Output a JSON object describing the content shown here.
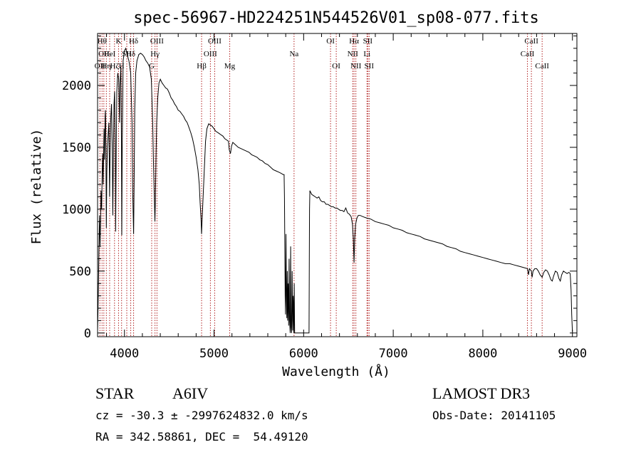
{
  "chart_data": {
    "type": "line",
    "title": "spec-56967-HD224251N544526V01_sp08-077.fits",
    "xlabel": "Wavelength (Å)",
    "ylabel": "Flux (relative)",
    "xlim": [
      3700,
      9050
    ],
    "ylim": [
      -30,
      2420
    ],
    "xticks": [
      4000,
      5000,
      6000,
      7000,
      8000,
      9000
    ],
    "yticks": [
      0,
      500,
      1000,
      1500,
      2000
    ],
    "series": [
      {
        "name": "flux",
        "points": [
          [
            3700,
            20
          ],
          [
            3705,
            180
          ],
          [
            3712,
            500
          ],
          [
            3718,
            800
          ],
          [
            3722,
            950
          ],
          [
            3728,
            700
          ],
          [
            3733,
            900
          ],
          [
            3738,
            1150
          ],
          [
            3745,
            1000
          ],
          [
            3752,
            1300
          ],
          [
            3757,
            1450
          ],
          [
            3763,
            1200
          ],
          [
            3768,
            1500
          ],
          [
            3772,
            1650
          ],
          [
            3778,
            1400
          ],
          [
            3784,
            1750
          ],
          [
            3788,
            1800
          ],
          [
            3793,
            1500
          ],
          [
            3798,
            850
          ],
          [
            3803,
            1300
          ],
          [
            3810,
            1500
          ],
          [
            3818,
            1600
          ],
          [
            3826,
            1700
          ],
          [
            3834,
            1100
          ],
          [
            3840,
            1450
          ],
          [
            3848,
            1750
          ],
          [
            3856,
            1850
          ],
          [
            3864,
            1500
          ],
          [
            3870,
            950
          ],
          [
            3877,
            1500
          ],
          [
            3884,
            1850
          ],
          [
            3890,
            1950
          ],
          [
            3898,
            1500
          ],
          [
            3902,
            820
          ],
          [
            3908,
            1500
          ],
          [
            3915,
            1950
          ],
          [
            3925,
            2100
          ],
          [
            3935,
            2050
          ],
          [
            3945,
            1700
          ],
          [
            3950,
            2000
          ],
          [
            3960,
            2150
          ],
          [
            3967,
            1500
          ],
          [
            3970,
            790
          ],
          [
            3975,
            1500
          ],
          [
            3985,
            2200
          ],
          [
            4000,
            2280
          ],
          [
            4015,
            2300
          ],
          [
            4030,
            2250
          ],
          [
            4050,
            2200
          ],
          [
            4070,
            2100
          ],
          [
            4085,
            1700
          ],
          [
            4092,
            1150
          ],
          [
            4102,
            800
          ],
          [
            4108,
            1200
          ],
          [
            4115,
            1800
          ],
          [
            4125,
            2100
          ],
          [
            4140,
            2200
          ],
          [
            4160,
            2250
          ],
          [
            4180,
            2260
          ],
          [
            4200,
            2250
          ],
          [
            4220,
            2230
          ],
          [
            4240,
            2200
          ],
          [
            4260,
            2180
          ],
          [
            4280,
            2150
          ],
          [
            4300,
            2050
          ],
          [
            4315,
            1700
          ],
          [
            4325,
            1350
          ],
          [
            4335,
            1050
          ],
          [
            4340,
            900
          ],
          [
            4345,
            1050
          ],
          [
            4352,
            1400
          ],
          [
            4360,
            1700
          ],
          [
            4372,
            1900
          ],
          [
            4385,
            2020
          ],
          [
            4400,
            2050
          ],
          [
            4420,
            2020
          ],
          [
            4440,
            2000
          ],
          [
            4460,
            1980
          ],
          [
            4480,
            1970
          ],
          [
            4500,
            1940
          ],
          [
            4520,
            1900
          ],
          [
            4540,
            1880
          ],
          [
            4560,
            1850
          ],
          [
            4580,
            1830
          ],
          [
            4600,
            1800
          ],
          [
            4620,
            1790
          ],
          [
            4640,
            1770
          ],
          [
            4660,
            1750
          ],
          [
            4680,
            1720
          ],
          [
            4700,
            1700
          ],
          [
            4720,
            1660
          ],
          [
            4740,
            1620
          ],
          [
            4760,
            1570
          ],
          [
            4780,
            1500
          ],
          [
            4800,
            1420
          ],
          [
            4820,
            1320
          ],
          [
            4835,
            1200
          ],
          [
            4845,
            1050
          ],
          [
            4855,
            920
          ],
          [
            4861,
            800
          ],
          [
            4867,
            920
          ],
          [
            4878,
            1100
          ],
          [
            4890,
            1300
          ],
          [
            4905,
            1550
          ],
          [
            4920,
            1650
          ],
          [
            4940,
            1690
          ],
          [
            4960,
            1680
          ],
          [
            4980,
            1670
          ],
          [
            5000,
            1650
          ],
          [
            5020,
            1630
          ],
          [
            5040,
            1620
          ],
          [
            5060,
            1610
          ],
          [
            5080,
            1600
          ],
          [
            5100,
            1590
          ],
          [
            5120,
            1570
          ],
          [
            5140,
            1560
          ],
          [
            5160,
            1550
          ],
          [
            5170,
            1480
          ],
          [
            5183,
            1450
          ],
          [
            5195,
            1510
          ],
          [
            5210,
            1540
          ],
          [
            5240,
            1520
          ],
          [
            5270,
            1500
          ],
          [
            5300,
            1490
          ],
          [
            5330,
            1480
          ],
          [
            5360,
            1470
          ],
          [
            5390,
            1460
          ],
          [
            5420,
            1440
          ],
          [
            5450,
            1430
          ],
          [
            5480,
            1420
          ],
          [
            5510,
            1400
          ],
          [
            5540,
            1390
          ],
          [
            5570,
            1370
          ],
          [
            5600,
            1360
          ],
          [
            5630,
            1340
          ],
          [
            5660,
            1320
          ],
          [
            5690,
            1310
          ],
          [
            5720,
            1300
          ],
          [
            5750,
            1290
          ],
          [
            5770,
            1280
          ],
          [
            5782,
            1280
          ],
          [
            5786,
            1100
          ],
          [
            5790,
            700
          ],
          [
            5794,
            300
          ],
          [
            5798,
            150
          ],
          [
            5803,
            800
          ],
          [
            5808,
            300
          ],
          [
            5812,
            120
          ],
          [
            5818,
            500
          ],
          [
            5822,
            100
          ],
          [
            5828,
            400
          ],
          [
            5833,
            60
          ],
          [
            5838,
            600
          ],
          [
            5843,
            100
          ],
          [
            5850,
            0
          ],
          [
            5855,
            700
          ],
          [
            5860,
            50
          ],
          [
            5866,
            0
          ],
          [
            5872,
            500
          ],
          [
            5878,
            20
          ],
          [
            5884,
            300
          ],
          [
            5890,
            0
          ],
          [
            5895,
            400
          ],
          [
            5900,
            0
          ],
          [
            5910,
            0
          ],
          [
            5940,
            0
          ],
          [
            5970,
            0
          ],
          [
            6000,
            0
          ],
          [
            6030,
            0
          ],
          [
            6050,
            0
          ],
          [
            6060,
            0
          ],
          [
            6063,
            600
          ],
          [
            6066,
            1000
          ],
          [
            6070,
            1150
          ],
          [
            6090,
            1120
          ],
          [
            6110,
            1110
          ],
          [
            6130,
            1100
          ],
          [
            6150,
            1090
          ],
          [
            6170,
            1100
          ],
          [
            6190,
            1070
          ],
          [
            6210,
            1060
          ],
          [
            6230,
            1060
          ],
          [
            6250,
            1040
          ],
          [
            6270,
            1040
          ],
          [
            6290,
            1030
          ],
          [
            6310,
            1020
          ],
          [
            6330,
            1020
          ],
          [
            6350,
            1010
          ],
          [
            6370,
            1010
          ],
          [
            6390,
            1000
          ],
          [
            6410,
            990
          ],
          [
            6430,
            990
          ],
          [
            6450,
            980
          ],
          [
            6470,
            1010
          ],
          [
            6490,
            970
          ],
          [
            6510,
            960
          ],
          [
            6530,
            940
          ],
          [
            6545,
            880
          ],
          [
            6555,
            760
          ],
          [
            6563,
            570
          ],
          [
            6570,
            760
          ],
          [
            6580,
            880
          ],
          [
            6595,
            930
          ],
          [
            6610,
            950
          ],
          [
            6630,
            950
          ],
          [
            6660,
            940
          ],
          [
            6700,
            930
          ],
          [
            6750,
            920
          ],
          [
            6800,
            900
          ],
          [
            6850,
            890
          ],
          [
            6900,
            880
          ],
          [
            6950,
            870
          ],
          [
            7000,
            850
          ],
          [
            7050,
            840
          ],
          [
            7100,
            830
          ],
          [
            7150,
            810
          ],
          [
            7200,
            800
          ],
          [
            7250,
            790
          ],
          [
            7300,
            780
          ],
          [
            7350,
            760
          ],
          [
            7400,
            750
          ],
          [
            7450,
            740
          ],
          [
            7500,
            730
          ],
          [
            7550,
            720
          ],
          [
            7600,
            700
          ],
          [
            7650,
            690
          ],
          [
            7700,
            680
          ],
          [
            7750,
            660
          ],
          [
            7800,
            650
          ],
          [
            7850,
            640
          ],
          [
            7900,
            630
          ],
          [
            7950,
            620
          ],
          [
            8000,
            610
          ],
          [
            8050,
            600
          ],
          [
            8100,
            590
          ],
          [
            8150,
            580
          ],
          [
            8200,
            570
          ],
          [
            8250,
            560
          ],
          [
            8300,
            560
          ],
          [
            8350,
            550
          ],
          [
            8400,
            540
          ],
          [
            8450,
            530
          ],
          [
            8498,
            520
          ],
          [
            8510,
            470
          ],
          [
            8520,
            520
          ],
          [
            8542,
            500
          ],
          [
            8550,
            450
          ],
          [
            8560,
            500
          ],
          [
            8580,
            520
          ],
          [
            8600,
            520
          ],
          [
            8620,
            500
          ],
          [
            8640,
            470
          ],
          [
            8662,
            450
          ],
          [
            8680,
            490
          ],
          [
            8700,
            510
          ],
          [
            8720,
            500
          ],
          [
            8740,
            470
          ],
          [
            8760,
            430
          ],
          [
            8775,
            420
          ],
          [
            8790,
            460
          ],
          [
            8810,
            500
          ],
          [
            8830,
            490
          ],
          [
            8850,
            440
          ],
          [
            8865,
            420
          ],
          [
            8880,
            470
          ],
          [
            8900,
            500
          ],
          [
            8920,
            490
          ],
          [
            8940,
            480
          ],
          [
            8960,
            490
          ],
          [
            8975,
            480
          ],
          [
            8985,
            350
          ],
          [
            8992,
            150
          ],
          [
            9000,
            10
          ]
        ]
      }
    ],
    "lines": [
      {
        "wl": 3726,
        "label": "OII",
        "row": 2
      },
      {
        "wl": 3750,
        "label": "Hθ",
        "row": 1
      },
      {
        "wl": 3770,
        "label": "OII",
        "row": 1.5
      },
      {
        "wl": 3798,
        "label": "Hη",
        "row": 2
      },
      {
        "wl": 3835,
        "label": "HeI",
        "row": 1.5
      },
      {
        "wl": 3889,
        "label": "Hζ",
        "row": 2
      },
      {
        "wl": 3934,
        "label": "K",
        "row": 1
      },
      {
        "wl": 3968,
        "label": "H",
        "row": 2
      },
      {
        "wl": 4026,
        "label": "SII",
        "row": 1.5
      },
      {
        "wl": 4102,
        "label": "Hδ",
        "row": 1
      },
      {
        "wl": 4070,
        "label": "Hδ",
        "row": 1.5
      },
      {
        "wl": 4304,
        "label": "G",
        "row": 2
      },
      {
        "wl": 4341,
        "label": "Hγ",
        "row": 1.5
      },
      {
        "wl": 4363,
        "label": "OIII",
        "row": 1
      },
      {
        "wl": 4861,
        "label": "Hβ",
        "row": 2
      },
      {
        "wl": 4959,
        "label": "OIII",
        "row": 1.5
      },
      {
        "wl": 5007,
        "label": "OIII",
        "row": 1
      },
      {
        "wl": 5175,
        "label": "Mg",
        "row": 2
      },
      {
        "wl": 5893,
        "label": "Na",
        "row": 1.5
      },
      {
        "wl": 6300,
        "label": "OI",
        "row": 1
      },
      {
        "wl": 6364,
        "label": "OI",
        "row": 2
      },
      {
        "wl": 6548,
        "label": "NII",
        "row": 1.5
      },
      {
        "wl": 6563,
        "label": "Hα",
        "row": 1
      },
      {
        "wl": 6583,
        "label": "NII",
        "row": 2
      },
      {
        "wl": 6707,
        "label": "Li",
        "row": 1.5
      },
      {
        "wl": 6716,
        "label": "SII",
        "row": 1
      },
      {
        "wl": 6731,
        "label": "SII",
        "row": 2
      },
      {
        "wl": 8498,
        "label": "CaII",
        "row": 1.5
      },
      {
        "wl": 8542,
        "label": "CaII",
        "row": 1
      },
      {
        "wl": 8662,
        "label": "CaII",
        "row": 2
      }
    ]
  },
  "info": {
    "object_type": "STAR",
    "subclass": "A6IV",
    "survey": "LAMOST DR3",
    "cz": "cz = -30.3 ± -2997624832.0 km/s",
    "obs_date": "Obs-Date: 20141105",
    "coords": "RA = 342.58861, DEC =  54.49120"
  },
  "colors": {
    "axis": "#000000",
    "spectrum": "#000000",
    "line_marker": "#b22222"
  }
}
